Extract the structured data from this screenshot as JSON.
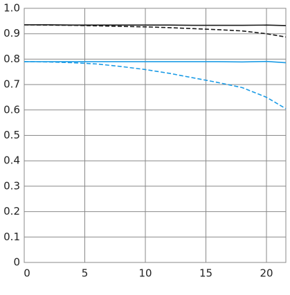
{
  "chart_data": {
    "type": "line",
    "x": [
      0,
      2,
      4,
      6,
      8,
      10,
      12,
      14,
      16,
      18,
      20,
      21.6
    ],
    "series": [
      {
        "color": "#1a1a1a",
        "dash": false,
        "values": [
          0.935,
          0.935,
          0.934,
          0.934,
          0.934,
          0.934,
          0.934,
          0.933,
          0.933,
          0.933,
          0.934,
          0.932
        ]
      },
      {
        "color": "#1a1a1a",
        "dash": true,
        "values": [
          0.935,
          0.934,
          0.933,
          0.931,
          0.929,
          0.927,
          0.924,
          0.92,
          0.916,
          0.911,
          0.9,
          0.887
        ]
      },
      {
        "color": "#1a9be6",
        "dash": false,
        "values": [
          0.79,
          0.79,
          0.79,
          0.79,
          0.79,
          0.79,
          0.79,
          0.79,
          0.79,
          0.789,
          0.791,
          0.786
        ]
      },
      {
        "color": "#1a9be6",
        "dash": true,
        "values": [
          0.79,
          0.789,
          0.786,
          0.781,
          0.771,
          0.759,
          0.744,
          0.726,
          0.708,
          0.688,
          0.65,
          0.605
        ]
      }
    ],
    "xlim": [
      0,
      21.6
    ],
    "ylim": [
      0,
      1
    ],
    "xticks": [
      0,
      5,
      10,
      15,
      20
    ],
    "yticks": [
      0,
      0.1,
      0.2,
      0.3,
      0.4,
      0.5,
      0.6,
      0.7,
      0.8,
      0.9,
      {
        "value": 1,
        "label": "1.0"
      }
    ],
    "grid": true
  }
}
